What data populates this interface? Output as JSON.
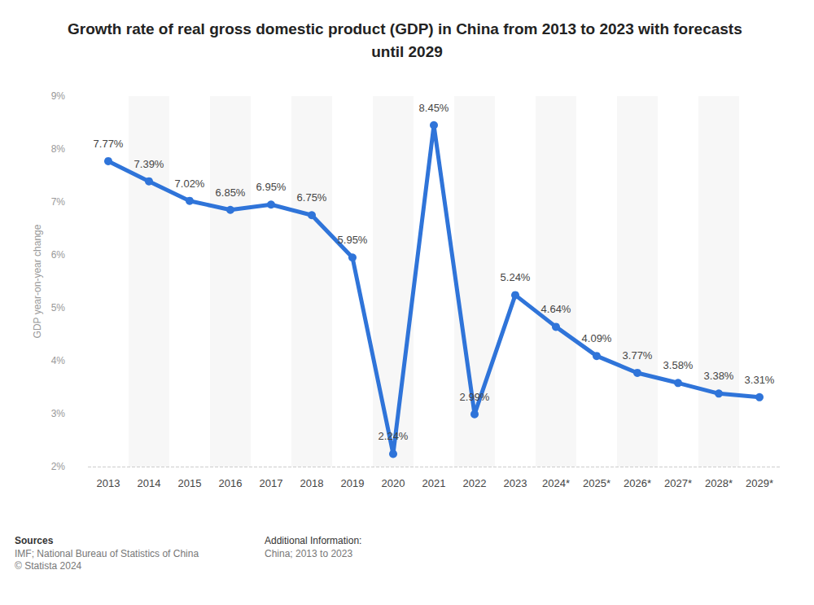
{
  "chart_data": {
    "type": "line",
    "title": "Growth rate of real gross domestic product (GDP) in China from 2013 to 2023 with forecasts until 2029",
    "y_label": "GDP year-on-year change",
    "categories": [
      "2013",
      "2014",
      "2015",
      "2016",
      "2017",
      "2018",
      "2019",
      "2020",
      "2021",
      "2022",
      "2023",
      "2024*",
      "2025*",
      "2026*",
      "2027*",
      "2028*",
      "2029*"
    ],
    "values": [
      7.77,
      7.39,
      7.02,
      6.85,
      6.95,
      6.75,
      5.95,
      2.24,
      8.45,
      2.99,
      5.24,
      4.64,
      4.09,
      3.77,
      3.58,
      3.38,
      3.31
    ],
    "value_labels": [
      "7.77%",
      "7.39%",
      "7.02%",
      "6.85%",
      "6.95%",
      "6.75%",
      "5.95%",
      "2.24%",
      "8.45%",
      "2.99%",
      "5.24%",
      "4.64%",
      "4.09%",
      "3.77%",
      "3.58%",
      "3.38%",
      "3.31%"
    ],
    "color": "#2f74d9",
    "marker": "circle",
    "ylim": [
      2,
      9
    ],
    "yticks": [
      {
        "value": 2,
        "label": "2%"
      },
      {
        "value": 3,
        "label": "3%"
      },
      {
        "value": 4,
        "label": "4%"
      },
      {
        "value": 5,
        "label": "5%"
      },
      {
        "value": 6,
        "label": "6%"
      },
      {
        "value": 7,
        "label": "7%"
      },
      {
        "value": 8,
        "label": "8%"
      },
      {
        "value": 9,
        "label": "9%"
      }
    ],
    "grid": true,
    "data_labels": true,
    "footer": {
      "sources_title": "Sources",
      "sources": [
        "IMF; National Bureau of Statistics of China",
        "© Statista 2024"
      ],
      "additional_title": "Additional Information:",
      "additional": [
        "China; 2013 to 2023"
      ]
    }
  }
}
